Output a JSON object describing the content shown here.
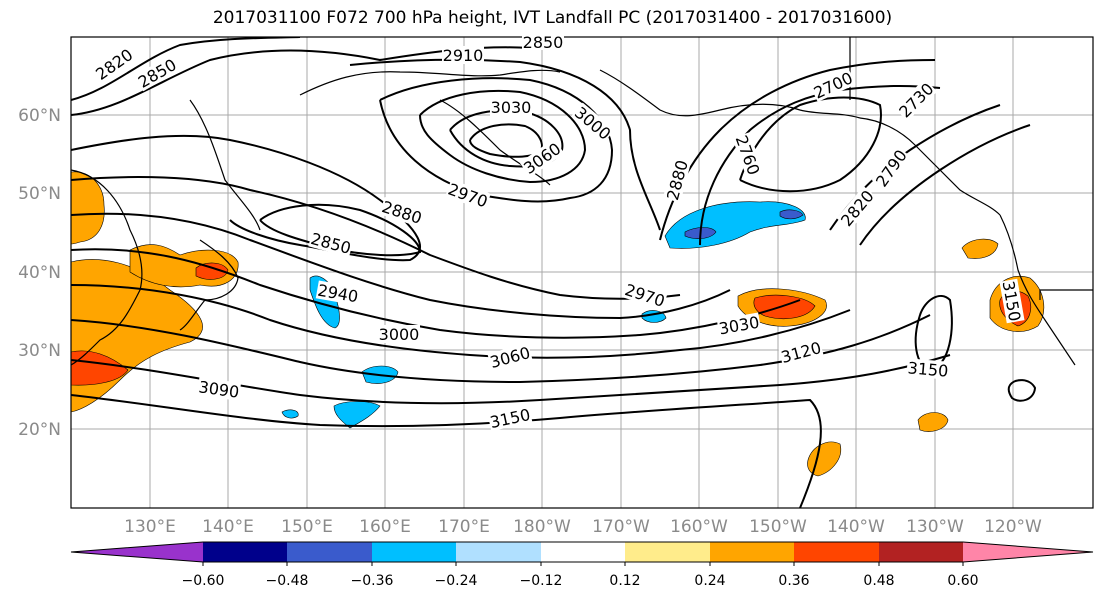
{
  "title": "2017031100 F072 700 hPa height, IVT Landfall PC (2017031400 - 2017031600)",
  "latitude_labels": [
    "60°N",
    "50°N",
    "40°N",
    "30°N",
    "20°N"
  ],
  "longitude_labels": [
    "130°E",
    "140°E",
    "150°E",
    "160°E",
    "170°E",
    "180°W",
    "170°W",
    "160°W",
    "150°W",
    "140°W",
    "130°W",
    "120°W"
  ],
  "contour_labels": [
    "2820",
    "2850",
    "2910",
    "2850",
    "3030",
    "3000",
    "3060",
    "2970",
    "2880",
    "2850",
    "2700",
    "2730",
    "2760",
    "2880",
    "2790",
    "2820",
    "2940",
    "3000",
    "2970",
    "3030",
    "3060",
    "3090",
    "3150",
    "3120",
    "3150",
    "3150"
  ],
  "colorbar": {
    "colors": [
      "#9932cc",
      "#00008b",
      "#3a5bcc",
      "#00bfff",
      "#b0e0ff",
      "#ffffff",
      "#ffec8b",
      "#ffa500",
      "#ff4500",
      "#b22222",
      "#ff85a8"
    ],
    "tick_labels": [
      "−0.60",
      "−0.48",
      "−0.36",
      "−0.24",
      "−0.12",
      "0.12",
      "0.24",
      "0.36",
      "0.48",
      "0.60"
    ]
  }
}
